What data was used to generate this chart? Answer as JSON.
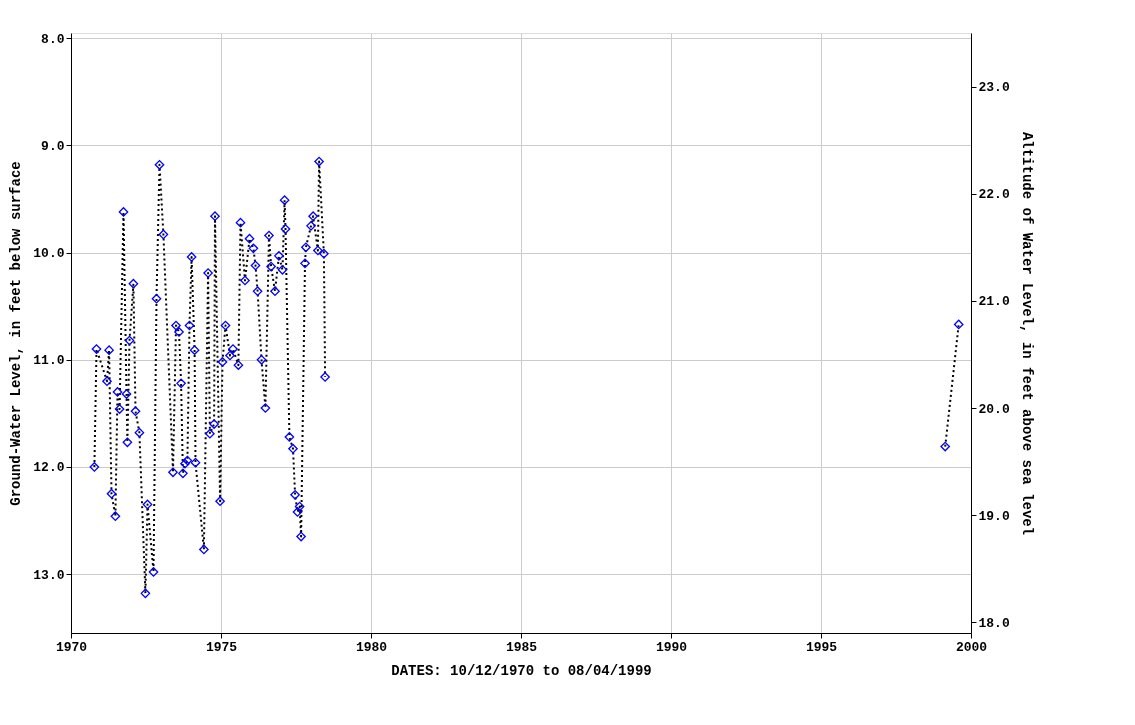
{
  "chart_data": {
    "type": "line",
    "xlabel": "DATES: 10/12/1970 to 08/04/1999",
    "ylabel": "Ground-Water Level, in feet below surface",
    "y2label": "Altitude of Water Level, in feet above sea level",
    "x": [
      1970.78,
      1970.85,
      1971.2,
      1971.27,
      1971.35,
      1971.48,
      1971.55,
      1971.62,
      1971.75,
      1971.85,
      1971.88,
      1971.95,
      1972.08,
      1972.15,
      1972.28,
      1972.48,
      1972.55,
      1972.75,
      1972.85,
      1972.95,
      1973.08,
      1973.4,
      1973.5,
      1973.6,
      1973.67,
      1973.73,
      1973.8,
      1973.88,
      1973.95,
      1974.02,
      1974.12,
      1974.15,
      1974.43,
      1974.57,
      1974.63,
      1974.77,
      1974.8,
      1974.97,
      1975.05,
      1975.15,
      1975.3,
      1975.4,
      1975.58,
      1975.65,
      1975.8,
      1975.95,
      1976.08,
      1976.15,
      1976.22,
      1976.35,
      1976.48,
      1976.6,
      1976.67,
      1976.8,
      1976.93,
      1977.05,
      1977.12,
      1977.15,
      1977.28,
      1977.4,
      1977.47,
      1977.55,
      1977.62,
      1977.67,
      1977.8,
      1977.83,
      1978.0,
      1978.07,
      1978.23,
      1978.27,
      1978.43,
      1978.47,
      1990,
      1999.14,
      1999.59
    ],
    "series": [
      {
        "color": "#0000ff",
        "values": [
          12.0,
          10.9,
          11.2,
          10.91,
          12.25,
          12.46,
          11.3,
          11.46,
          9.62,
          11.32,
          11.77,
          10.82,
          10.29,
          11.48,
          11.68,
          13.18,
          12.35,
          12.98,
          10.43,
          9.18,
          9.83,
          12.05,
          10.68,
          10.74,
          11.22,
          12.06,
          11.97,
          11.94,
          10.68,
          10.04,
          10.91,
          11.96,
          12.77,
          10.19,
          11.69,
          11.6,
          9.66,
          12.32,
          11.02,
          10.68,
          10.96,
          10.9,
          11.05,
          9.72,
          10.26,
          9.87,
          9.96,
          10.12,
          10.36,
          11.0,
          11.45,
          9.84,
          10.13,
          10.36,
          10.03,
          10.16,
          9.51,
          9.78,
          11.72,
          11.83,
          12.26,
          12.42,
          12.37,
          12.65,
          10.1,
          9.95,
          9.75,
          9.66,
          9.98,
          9.15,
          10.01,
          11.16,
          null,
          11.81,
          10.67
        ]
      }
    ],
    "marker": "diamond",
    "line_style": "dotted",
    "grid": true,
    "xlim": [
      1970,
      2000
    ],
    "xticks": [
      1970,
      1975,
      1980,
      1985,
      1990,
      1995,
      2000
    ],
    "ylim": [
      13.55,
      7.95
    ],
    "yticks": [
      {
        "value": 8,
        "label": "8.0"
      },
      {
        "value": 9,
        "label": "9.0"
      },
      {
        "value": 10,
        "label": "10.0"
      },
      {
        "value": 11,
        "label": "11.0"
      },
      {
        "value": 12,
        "label": "12.0"
      },
      {
        "value": 13,
        "label": "13.0"
      }
    ],
    "y2lim": [
      17.9,
      23.5
    ],
    "y2ticks": [
      {
        "value": 18,
        "label": "18.0"
      },
      {
        "value": 19,
        "label": "19.0"
      },
      {
        "value": 20,
        "label": "20.0"
      },
      {
        "value": 21,
        "label": "21.0"
      },
      {
        "value": 22,
        "label": "22.0"
      },
      {
        "value": 23,
        "label": "23.0"
      }
    ]
  }
}
